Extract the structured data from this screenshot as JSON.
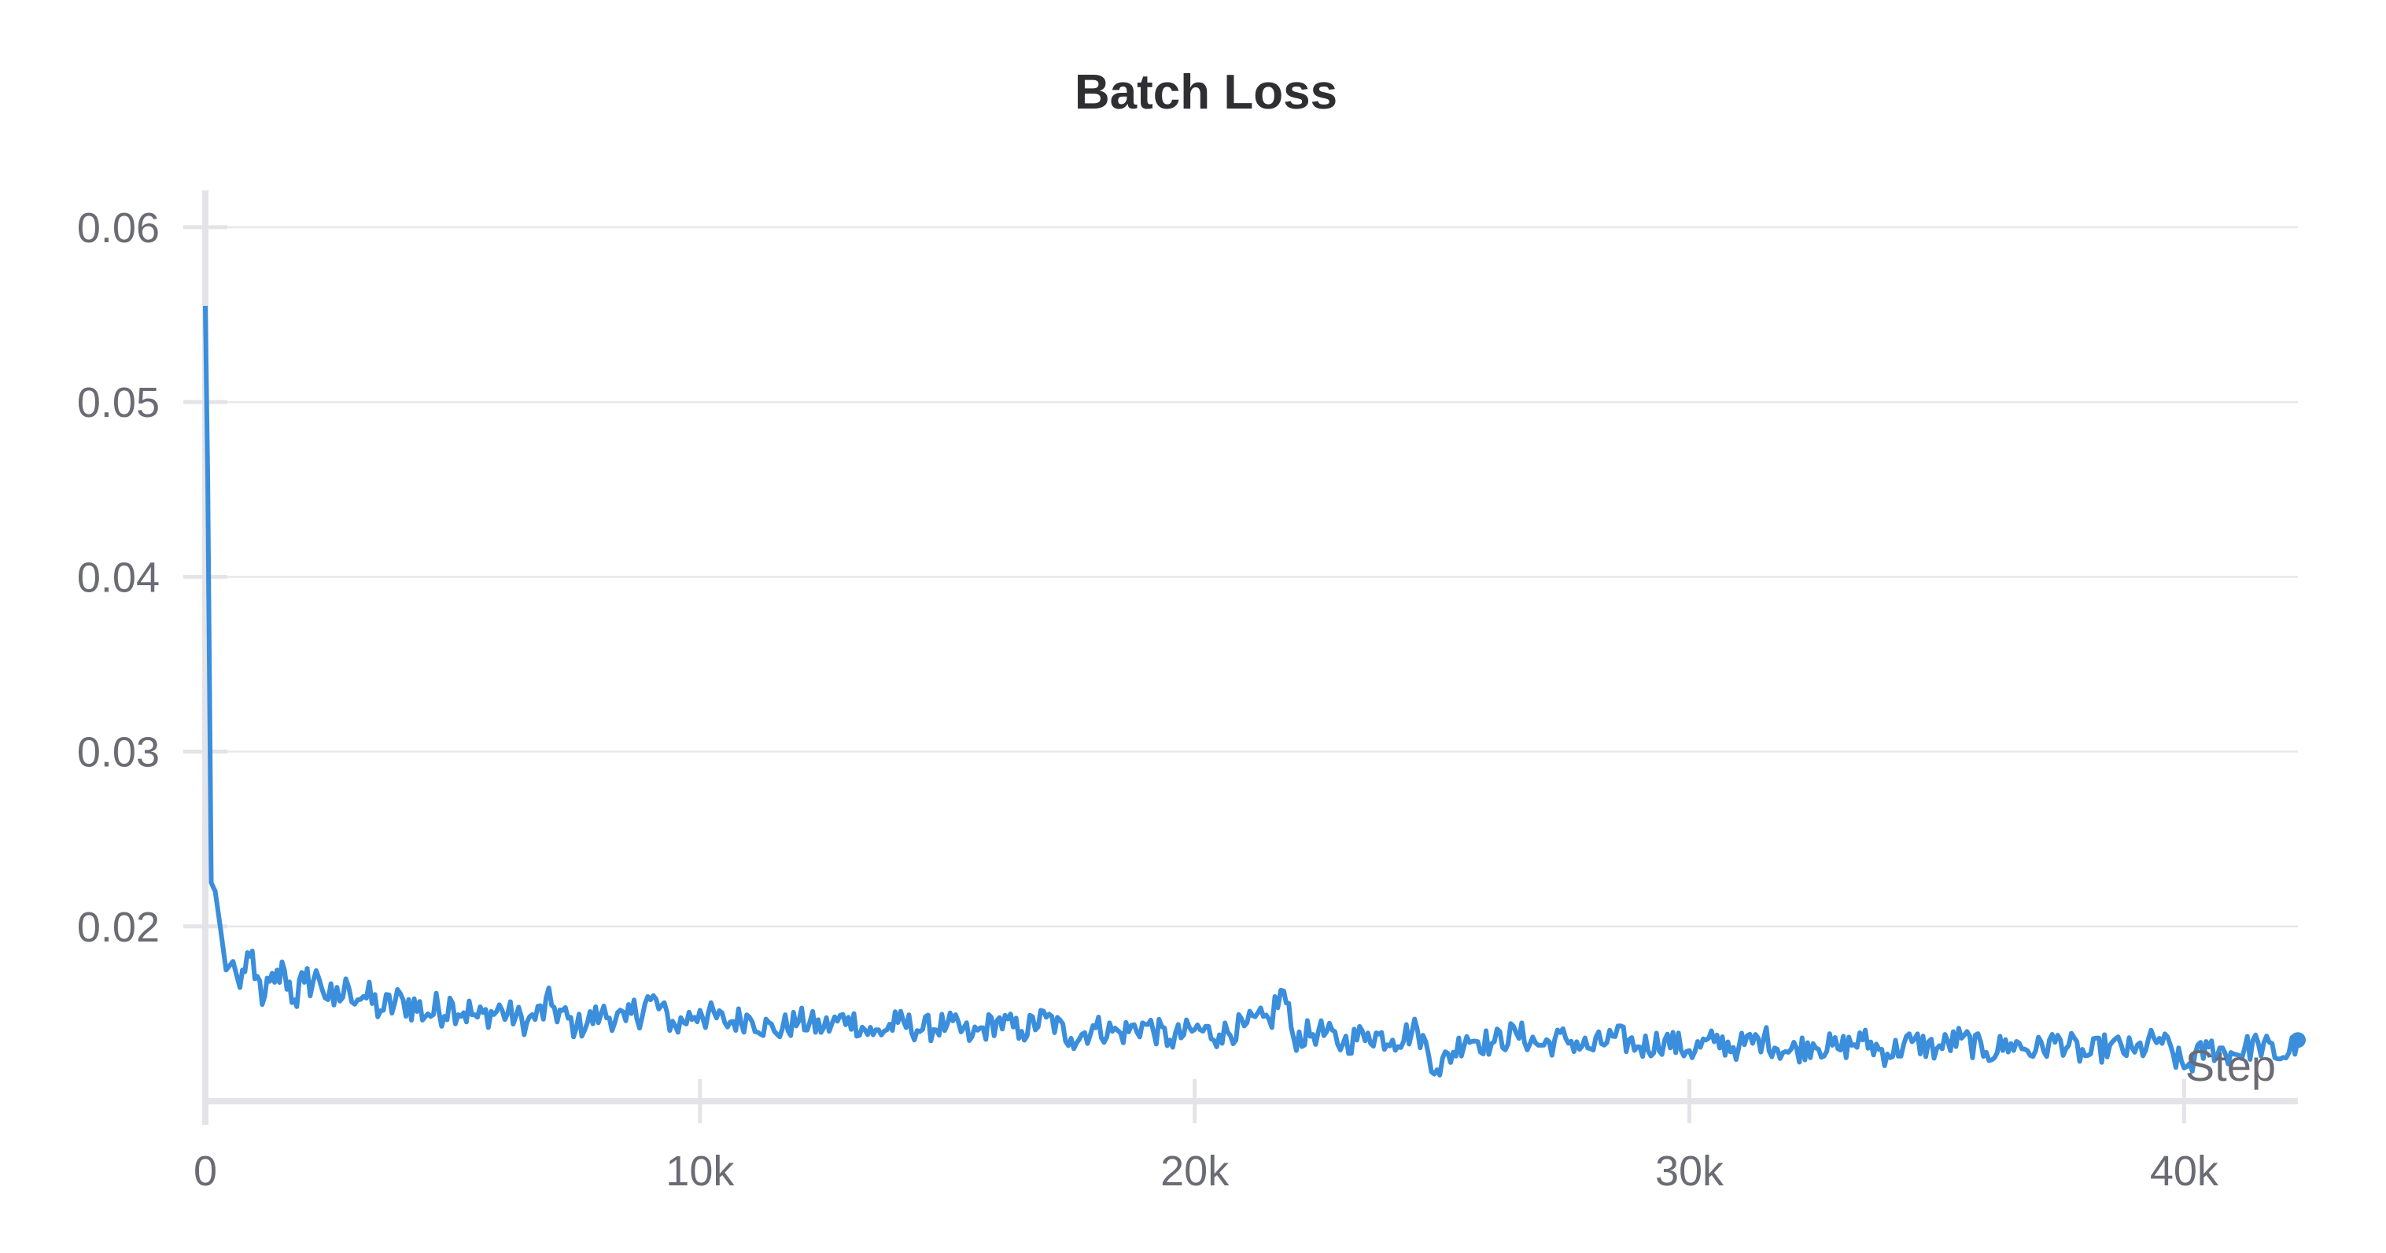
{
  "chart_data": {
    "type": "line",
    "title": "Batch Loss",
    "xlabel": "Step",
    "ylabel": "",
    "xlim": [
      0,
      42300
    ],
    "ylim": [
      0.01,
      0.0622
    ],
    "x_ticks": [
      {
        "value": 0,
        "label": "0"
      },
      {
        "value": 10000,
        "label": "10k"
      },
      {
        "value": 20000,
        "label": "20k"
      },
      {
        "value": 30000,
        "label": "30k"
      },
      {
        "value": 40000,
        "label": "40k"
      }
    ],
    "y_ticks": [
      {
        "value": 0.02,
        "label": "0.02"
      },
      {
        "value": 0.03,
        "label": "0.03"
      },
      {
        "value": 0.04,
        "label": "0.04"
      },
      {
        "value": 0.05,
        "label": "0.05"
      },
      {
        "value": 0.06,
        "label": "0.06"
      }
    ],
    "grid": true,
    "legend": "none",
    "colors": {
      "series": "#3a8edc",
      "grid": "#e8e8ec",
      "axis": "#e4e4e8",
      "text": "#6b6b75",
      "title": "#2f2f33"
    },
    "series": [
      {
        "x": [
          0,
          50,
          120,
          200,
          300,
          420,
          560,
          700,
          850,
          1000,
          1200,
          1400,
          1600,
          1800,
          2000,
          2300,
          2600,
          2900,
          3200,
          3600,
          4000,
          4500,
          5000,
          5500,
          6000,
          6500,
          7000,
          7500,
          8000,
          8500,
          9000,
          9500,
          10000,
          10500,
          11000,
          11500,
          12000,
          12500,
          13000,
          13500,
          14000,
          14500,
          15000,
          15500,
          16000,
          16500,
          17000,
          17500,
          18000,
          18500,
          19000,
          19500,
          20000,
          20500,
          21000,
          21500,
          21800,
          22000,
          22500,
          23000,
          23500,
          24000,
          24500,
          24900,
          25500,
          26000,
          26500,
          27000,
          27500,
          28000,
          28500,
          29000,
          29500,
          30000,
          30500,
          31000,
          31500,
          32000,
          32500,
          33000,
          33500,
          34000,
          34500,
          35000,
          35500,
          36000,
          36500,
          37000,
          37500,
          38000,
          38500,
          39000,
          39500,
          40000,
          40500,
          41000,
          41500,
          42000,
          42300
        ],
        "y": [
          0.0555,
          0.0455,
          0.0225,
          0.022,
          0.02,
          0.0175,
          0.018,
          0.0165,
          0.0185,
          0.017,
          0.016,
          0.0168,
          0.0175,
          0.0158,
          0.0168,
          0.017,
          0.0155,
          0.0165,
          0.016,
          0.0152,
          0.0158,
          0.015,
          0.0156,
          0.0148,
          0.0152,
          0.0145,
          0.0155,
          0.0142,
          0.015,
          0.0146,
          0.0158,
          0.0143,
          0.0152,
          0.0145,
          0.0148,
          0.014,
          0.0146,
          0.0142,
          0.0148,
          0.0138,
          0.0145,
          0.0141,
          0.0144,
          0.0137,
          0.0146,
          0.014,
          0.0148,
          0.0136,
          0.0142,
          0.0139,
          0.0144,
          0.0135,
          0.0141,
          0.0138,
          0.0143,
          0.0147,
          0.0163,
          0.0136,
          0.014,
          0.0133,
          0.0139,
          0.0135,
          0.0141,
          0.0118,
          0.0137,
          0.0133,
          0.0139,
          0.0132,
          0.0136,
          0.013,
          0.0137,
          0.0131,
          0.0135,
          0.0129,
          0.0134,
          0.0131,
          0.0136,
          0.0128,
          0.0133,
          0.013,
          0.0135,
          0.0127,
          0.0134,
          0.013,
          0.0136,
          0.0128,
          0.0133,
          0.0129,
          0.0135,
          0.0126,
          0.0132,
          0.0128,
          0.0136,
          0.0119,
          0.0131,
          0.0127,
          0.0133,
          0.0125,
          0.0135
        ]
      }
    ]
  }
}
